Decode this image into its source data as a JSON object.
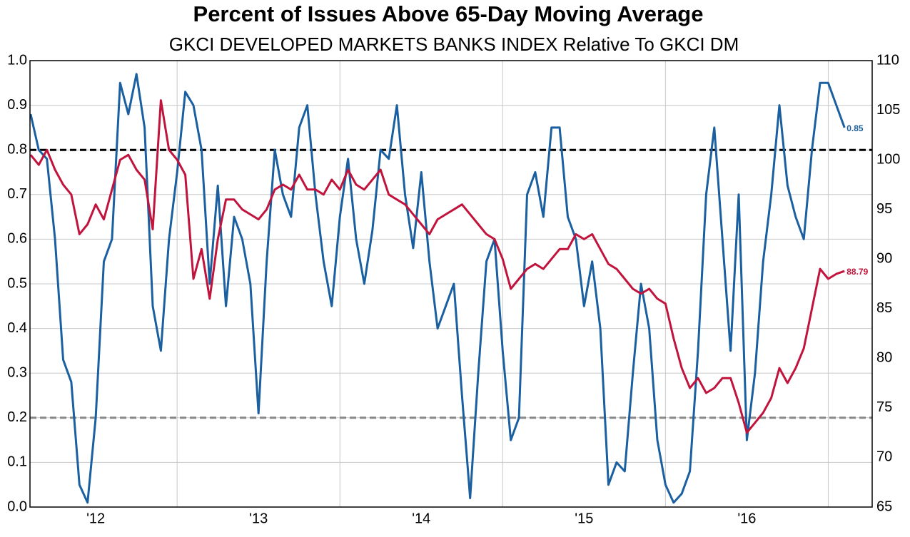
{
  "chart_data": {
    "type": "line",
    "title": "Percent of Issues Above 65-Day Moving Average",
    "subtitle": "GKCI DEVELOPED MARKETS BANKS INDEX Relative To GKCI DM",
    "x": [
      2012.1,
      2012.15,
      2012.2,
      2012.25,
      2012.3,
      2012.35,
      2012.4,
      2012.45,
      2012.5,
      2012.55,
      2012.6,
      2012.65,
      2012.7,
      2012.75,
      2012.8,
      2012.85,
      2012.9,
      2012.95,
      2013.0,
      2013.05,
      2013.1,
      2013.15,
      2013.2,
      2013.25,
      2013.3,
      2013.35,
      2013.4,
      2013.45,
      2013.5,
      2013.55,
      2013.6,
      2013.65,
      2013.7,
      2013.75,
      2013.8,
      2013.85,
      2013.9,
      2013.95,
      2014.0,
      2014.05,
      2014.1,
      2014.15,
      2014.2,
      2014.25,
      2014.3,
      2014.35,
      2014.4,
      2014.45,
      2014.5,
      2014.55,
      2014.6,
      2014.65,
      2014.7,
      2014.75,
      2014.8,
      2014.85,
      2014.9,
      2014.95,
      2015.0,
      2015.05,
      2015.1,
      2015.15,
      2015.2,
      2015.25,
      2015.3,
      2015.35,
      2015.4,
      2015.45,
      2015.5,
      2015.55,
      2015.6,
      2015.65,
      2015.7,
      2015.75,
      2015.8,
      2015.85,
      2015.9,
      2015.95,
      2016.0,
      2016.05,
      2016.1,
      2016.15,
      2016.2,
      2016.25,
      2016.3,
      2016.35,
      2016.4,
      2016.45,
      2016.5,
      2016.55,
      2016.6,
      2016.65,
      2016.7,
      2016.75,
      2016.8,
      2016.85,
      2016.9,
      2016.95,
      2017.0,
      2017.05,
      2017.1
    ],
    "series": [
      {
        "color": "#1a5fa0",
        "axis": "y",
        "end_label": true,
        "values": [
          0.88,
          0.8,
          0.78,
          0.6,
          0.33,
          0.28,
          0.05,
          0.01,
          0.2,
          0.55,
          0.6,
          0.95,
          0.88,
          0.97,
          0.85,
          0.45,
          0.35,
          0.6,
          0.75,
          0.93,
          0.9,
          0.8,
          0.5,
          0.72,
          0.45,
          0.65,
          0.6,
          0.5,
          0.21,
          0.55,
          0.8,
          0.7,
          0.65,
          0.85,
          0.9,
          0.7,
          0.55,
          0.45,
          0.65,
          0.78,
          0.6,
          0.5,
          0.62,
          0.8,
          0.78,
          0.9,
          0.7,
          0.58,
          0.75,
          0.55,
          0.4,
          0.45,
          0.5,
          0.25,
          0.02,
          0.3,
          0.55,
          0.6,
          0.35,
          0.15,
          0.2,
          0.7,
          0.75,
          0.65,
          0.85,
          0.85,
          0.65,
          0.6,
          0.45,
          0.55,
          0.4,
          0.05,
          0.1,
          0.08,
          0.3,
          0.5,
          0.4,
          0.15,
          0.05,
          0.01,
          0.03,
          0.08,
          0.35,
          0.7,
          0.85,
          0.6,
          0.35,
          0.7,
          0.15,
          0.3,
          0.55,
          0.7,
          0.9,
          0.72,
          0.65,
          0.6,
          0.8,
          0.95,
          0.95,
          0.9,
          0.85
        ]
      },
      {
        "color": "#c0143c",
        "axis": "y2",
        "end_label": true,
        "values": [
          100.5,
          99.5,
          101,
          99,
          97.5,
          96.5,
          92.5,
          93.5,
          95.5,
          94,
          97,
          100,
          100.5,
          99,
          98,
          93,
          106,
          101,
          100,
          98.5,
          88,
          91,
          86,
          92,
          96,
          96,
          95,
          94.5,
          94,
          95,
          97,
          97.5,
          97,
          98.5,
          97,
          97,
          96.5,
          98,
          97,
          99,
          97.5,
          97,
          98,
          99,
          96.5,
          96,
          95.5,
          94.5,
          93.5,
          92.5,
          94,
          94.5,
          95,
          95.5,
          94.5,
          93.5,
          92.5,
          92,
          90,
          87,
          88,
          89,
          89.5,
          89,
          90,
          91,
          91,
          92.5,
          92,
          92.5,
          91,
          89.5,
          89,
          88,
          87,
          86.5,
          87,
          86,
          85.5,
          82,
          79,
          77,
          78,
          76.5,
          77,
          78,
          78,
          75.5,
          72.5,
          73.5,
          74.5,
          76,
          79,
          77.5,
          79,
          81,
          85,
          89,
          88,
          88.5,
          88.79
        ]
      }
    ],
    "xlim": [
      2012.096,
      2017.27
    ],
    "xticks": [
      {
        "value": 2012.5,
        "label": "'12"
      },
      {
        "value": 2013.5,
        "label": "'13"
      },
      {
        "value": 2014.5,
        "label": "'14"
      },
      {
        "value": 2015.5,
        "label": "'15"
      },
      {
        "value": 2016.5,
        "label": "'16"
      }
    ],
    "xgrid": [
      2013,
      2014,
      2015,
      2016,
      2017
    ],
    "ylim": [
      0,
      1
    ],
    "yticks": [
      {
        "value": 0,
        "label": "0.0"
      },
      0.1,
      0.2,
      0.3,
      0.4,
      0.5,
      0.6,
      0.7,
      0.8,
      0.9,
      {
        "value": 1,
        "label": "1.0"
      }
    ],
    "y2lim": [
      65,
      110
    ],
    "y2ticks": [
      65,
      70,
      75,
      80,
      85,
      90,
      95,
      100,
      105,
      110
    ],
    "hlines": [
      {
        "value": 0.8,
        "color": "#000000"
      },
      {
        "value": 0.2,
        "color": "#888888"
      }
    ]
  }
}
